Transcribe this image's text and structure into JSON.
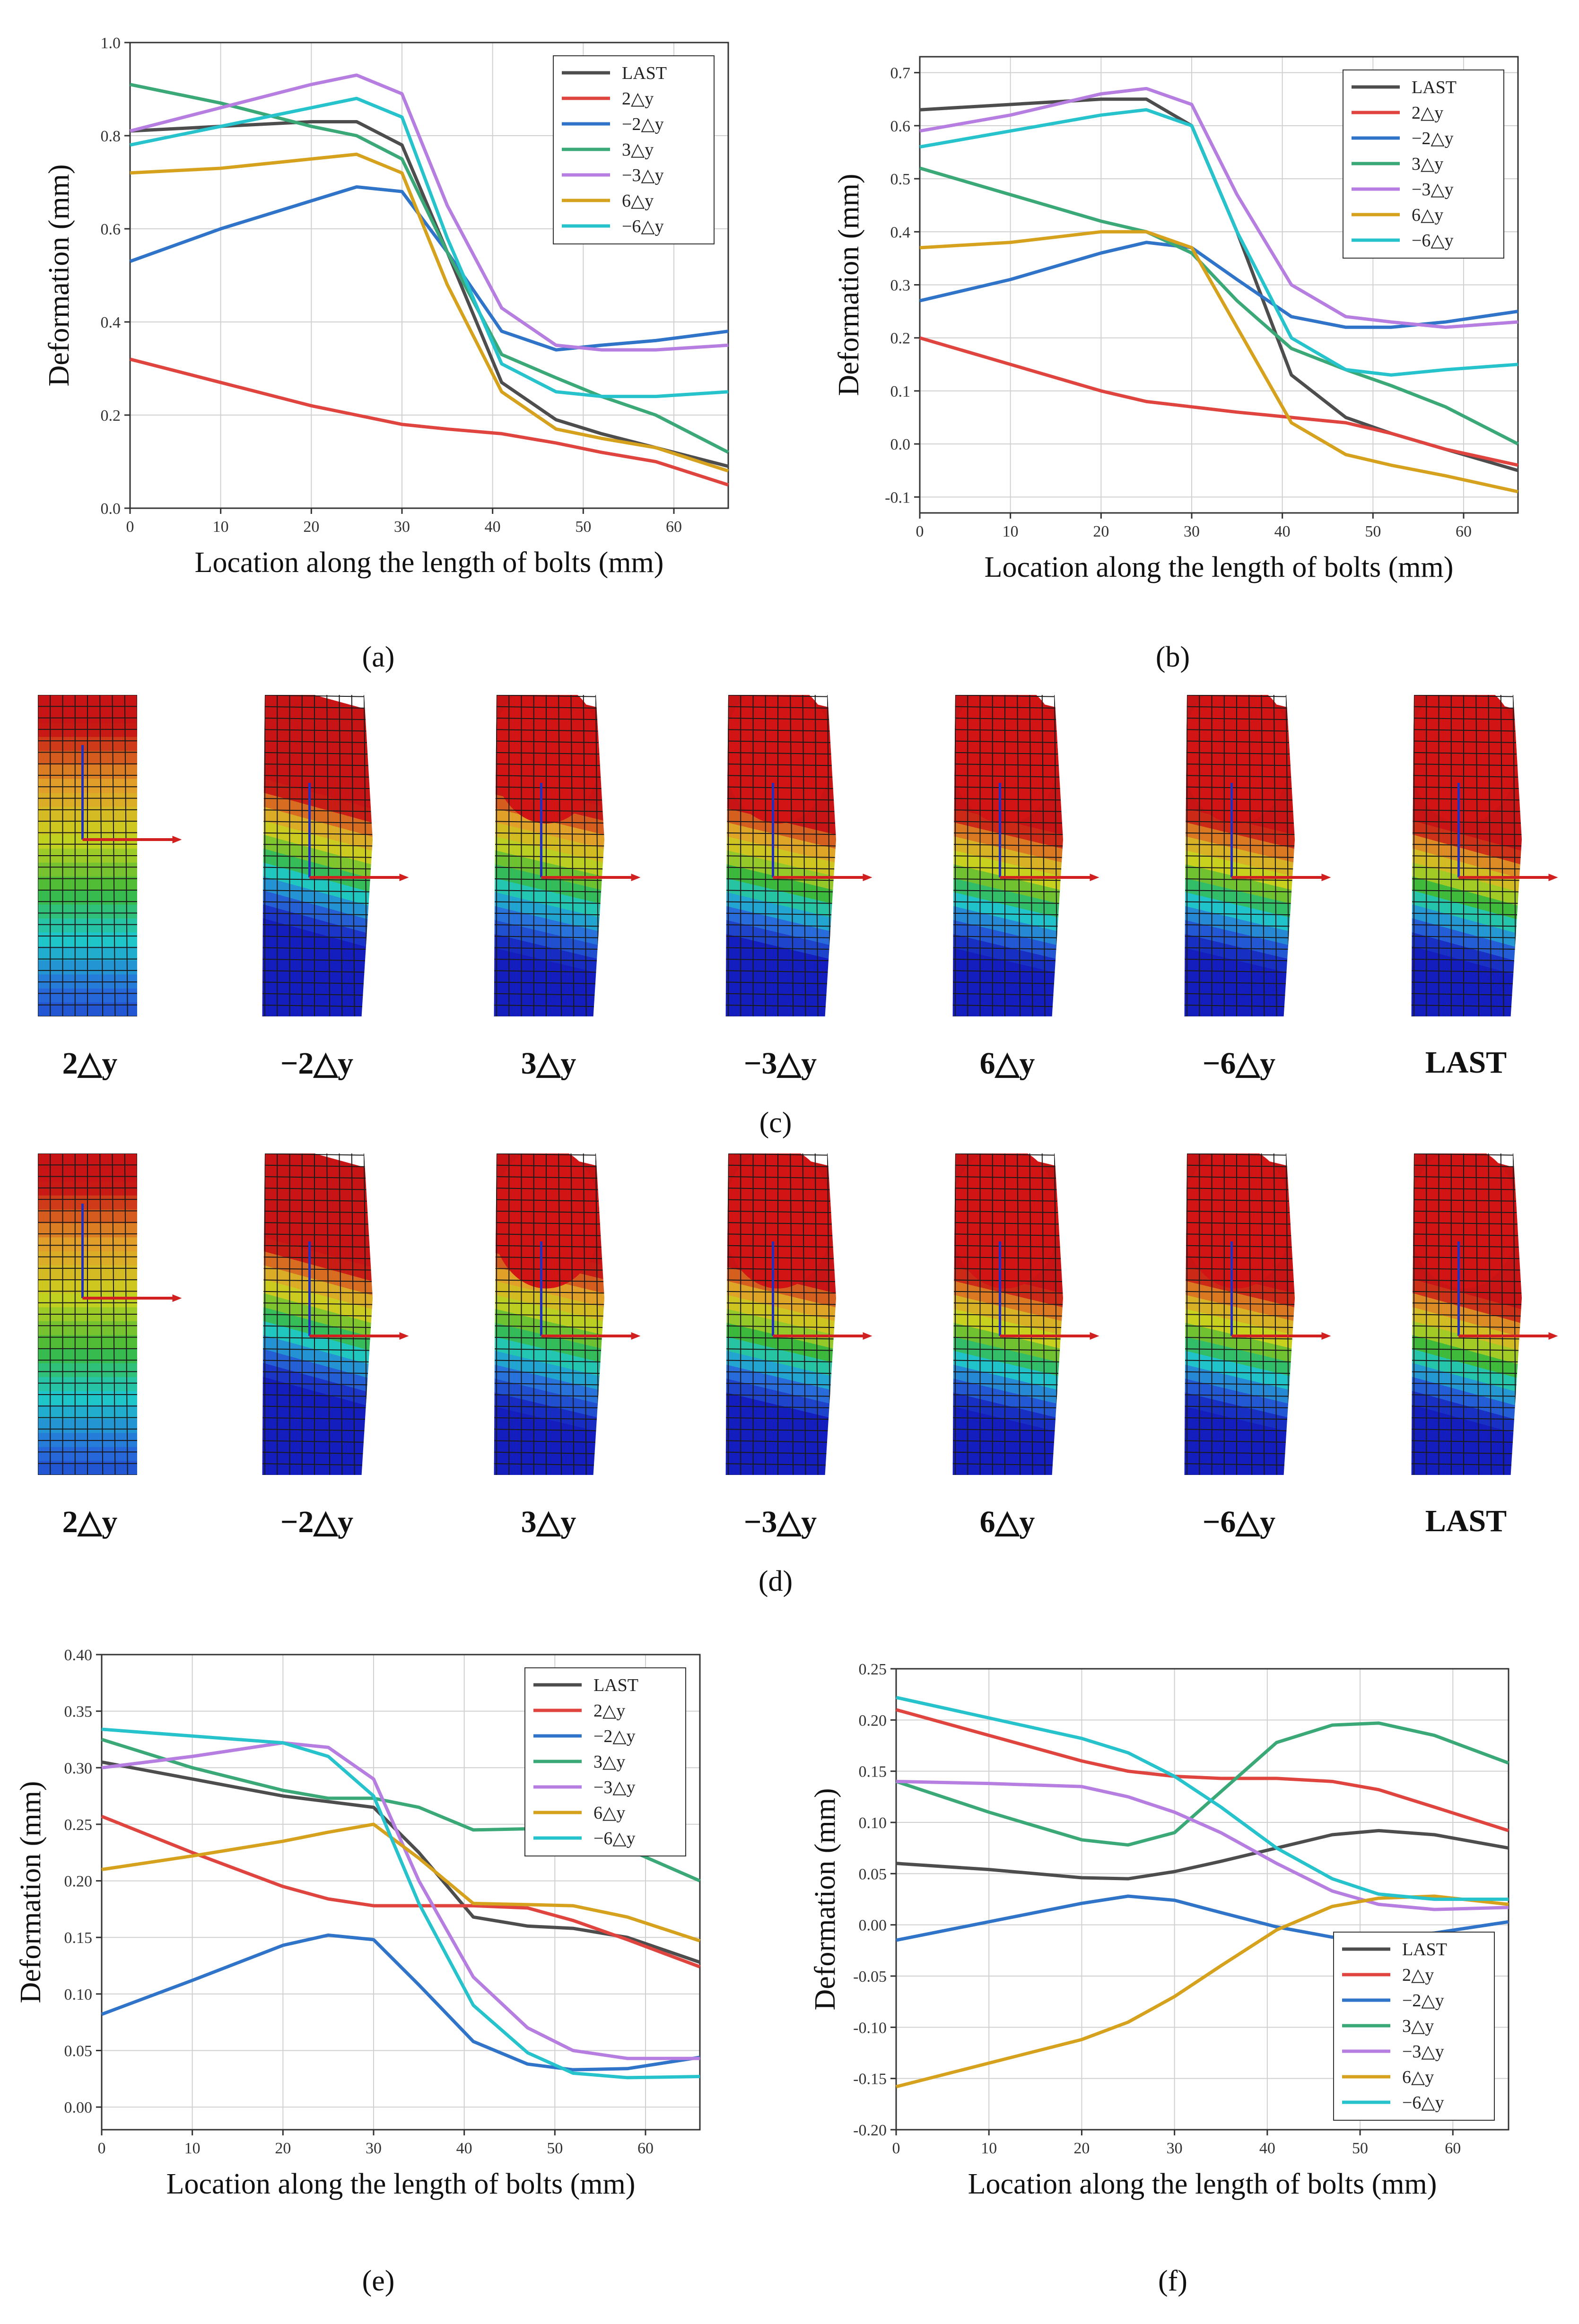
{
  "panels": {
    "a": "(a)",
    "b": "(b)",
    "c": "(c)",
    "d": "(d)",
    "e": "(e)",
    "f": "(f)"
  },
  "bolt_labels": [
    "2△y",
    "−2△y",
    "3△y",
    "−3△y",
    "6△y",
    "−6△y",
    "LAST"
  ],
  "colors": {
    "LAST": "#4d4d4d",
    "2△y": "#e0443e",
    "−2△y": "#2f74c8",
    "3△y": "#3aa877",
    "−3△y": "#b57ee0",
    "6△y": "#d6a21e",
    "−6△y": "#27c3cc"
  },
  "chart_data": [
    {
      "id": "a",
      "type": "line",
      "xlabel": "Location along the length of bolts (mm)",
      "ylabel": "Deformation (mm)",
      "xlim": [
        0,
        66
      ],
      "ylim": [
        0,
        1.0
      ],
      "xticks": [
        0,
        10,
        20,
        30,
        40,
        50,
        60
      ],
      "yticks": [
        0.0,
        0.2,
        0.4,
        0.6,
        0.8,
        1.0
      ],
      "ytick_labels": [
        "0.0",
        "0.2",
        "0.4",
        "0.6",
        "0.8",
        "1.0"
      ],
      "legend": "top-right",
      "x": [
        0,
        10,
        20,
        25,
        30,
        35,
        41,
        47,
        52,
        58,
        66
      ],
      "series": [
        {
          "name": "LAST",
          "values": [
            0.81,
            0.82,
            0.83,
            0.83,
            0.78,
            0.55,
            0.27,
            0.19,
            0.16,
            0.13,
            0.09
          ]
        },
        {
          "name": "2△y",
          "values": [
            0.32,
            0.27,
            0.22,
            0.2,
            0.18,
            0.17,
            0.16,
            0.14,
            0.12,
            0.1,
            0.05
          ]
        },
        {
          "name": "−2△y",
          "values": [
            0.53,
            0.6,
            0.66,
            0.69,
            0.68,
            0.55,
            0.38,
            0.34,
            0.35,
            0.36,
            0.38
          ]
        },
        {
          "name": "3△y",
          "values": [
            0.91,
            0.87,
            0.82,
            0.8,
            0.75,
            0.55,
            0.33,
            0.28,
            0.24,
            0.2,
            0.12
          ]
        },
        {
          "name": "−3△y",
          "values": [
            0.81,
            0.86,
            0.91,
            0.93,
            0.89,
            0.65,
            0.43,
            0.35,
            0.34,
            0.34,
            0.35
          ]
        },
        {
          "name": "6△y",
          "values": [
            0.72,
            0.73,
            0.75,
            0.76,
            0.72,
            0.48,
            0.25,
            0.17,
            0.15,
            0.13,
            0.08
          ]
        },
        {
          "name": "−6△y",
          "values": [
            0.78,
            0.82,
            0.86,
            0.88,
            0.84,
            0.58,
            0.31,
            0.25,
            0.24,
            0.24,
            0.25
          ]
        }
      ]
    },
    {
      "id": "b",
      "type": "line",
      "xlabel": "Location along the length of bolts (mm)",
      "ylabel": "Deformation (mm)",
      "xlim": [
        0,
        66
      ],
      "ylim": [
        -0.13,
        0.73
      ],
      "xticks": [
        0,
        10,
        20,
        30,
        40,
        50,
        60
      ],
      "yticks": [
        -0.1,
        0.0,
        0.1,
        0.2,
        0.3,
        0.4,
        0.5,
        0.6,
        0.7
      ],
      "ytick_labels": [
        "-0.1",
        "0.0",
        "0.1",
        "0.2",
        "0.3",
        "0.4",
        "0.5",
        "0.6",
        "0.7"
      ],
      "legend": "top-right",
      "x": [
        0,
        10,
        20,
        25,
        30,
        35,
        41,
        47,
        52,
        58,
        66
      ],
      "series": [
        {
          "name": "LAST",
          "values": [
            0.63,
            0.64,
            0.65,
            0.65,
            0.6,
            0.4,
            0.13,
            0.05,
            0.02,
            -0.01,
            -0.05
          ]
        },
        {
          "name": "2△y",
          "values": [
            0.2,
            0.15,
            0.1,
            0.08,
            0.07,
            0.06,
            0.05,
            0.04,
            0.02,
            -0.01,
            -0.04
          ]
        },
        {
          "name": "−2△y",
          "values": [
            0.27,
            0.31,
            0.36,
            0.38,
            0.37,
            0.31,
            0.24,
            0.22,
            0.22,
            0.23,
            0.25
          ]
        },
        {
          "name": "3△y",
          "values": [
            0.52,
            0.47,
            0.42,
            0.4,
            0.36,
            0.27,
            0.18,
            0.14,
            0.11,
            0.07,
            0.0
          ]
        },
        {
          "name": "−3△y",
          "values": [
            0.59,
            0.62,
            0.66,
            0.67,
            0.64,
            0.47,
            0.3,
            0.24,
            0.23,
            0.22,
            0.23
          ]
        },
        {
          "name": "6△y",
          "values": [
            0.37,
            0.38,
            0.4,
            0.4,
            0.37,
            0.22,
            0.04,
            -0.02,
            -0.04,
            -0.06,
            -0.09
          ]
        },
        {
          "name": "−6△y",
          "values": [
            0.56,
            0.59,
            0.62,
            0.63,
            0.6,
            0.4,
            0.2,
            0.14,
            0.13,
            0.14,
            0.15
          ]
        }
      ]
    },
    {
      "id": "e",
      "type": "line",
      "xlabel": "Location along the length of bolts (mm)",
      "ylabel": "Deformation (mm)",
      "xlim": [
        0,
        66
      ],
      "ylim": [
        -0.02,
        0.4
      ],
      "xticks": [
        0,
        10,
        20,
        30,
        40,
        50,
        60
      ],
      "yticks": [
        0.0,
        0.05,
        0.1,
        0.15,
        0.2,
        0.25,
        0.3,
        0.35,
        0.4
      ],
      "ytick_labels": [
        "0.00",
        "0.05",
        "0.10",
        "0.15",
        "0.20",
        "0.25",
        "0.30",
        "0.35",
        "0.40"
      ],
      "legend": "top-right",
      "x": [
        0,
        10,
        20,
        25,
        30,
        35,
        41,
        47,
        52,
        58,
        66
      ],
      "series": [
        {
          "name": "LAST",
          "values": [
            0.305,
            0.29,
            0.275,
            0.27,
            0.265,
            0.225,
            0.168,
            0.16,
            0.158,
            0.15,
            0.128
          ]
        },
        {
          "name": "2△y",
          "values": [
            0.257,
            0.225,
            0.195,
            0.184,
            0.178,
            0.178,
            0.178,
            0.176,
            0.165,
            0.148,
            0.124
          ]
        },
        {
          "name": "−2△y",
          "values": [
            0.082,
            0.112,
            0.143,
            0.152,
            0.148,
            0.108,
            0.058,
            0.038,
            0.033,
            0.034,
            0.044
          ]
        },
        {
          "name": "3△y",
          "values": [
            0.325,
            0.3,
            0.28,
            0.273,
            0.273,
            0.265,
            0.245,
            0.246,
            0.242,
            0.228,
            0.2
          ]
        },
        {
          "name": "−3△y",
          "values": [
            0.3,
            0.31,
            0.322,
            0.318,
            0.29,
            0.2,
            0.115,
            0.07,
            0.05,
            0.043,
            0.043
          ]
        },
        {
          "name": "6△y",
          "values": [
            0.21,
            0.222,
            0.235,
            0.243,
            0.25,
            0.22,
            0.18,
            0.179,
            0.178,
            0.168,
            0.147
          ]
        },
        {
          "name": "−6△y",
          "values": [
            0.334,
            0.328,
            0.322,
            0.31,
            0.275,
            0.18,
            0.09,
            0.048,
            0.03,
            0.026,
            0.027
          ]
        }
      ]
    },
    {
      "id": "f",
      "type": "line",
      "xlabel": "Location along the length of bolts (mm)",
      "ylabel": "Deformation (mm)",
      "xlim": [
        0,
        66
      ],
      "ylim": [
        -0.2,
        0.25
      ],
      "xticks": [
        0,
        10,
        20,
        30,
        40,
        50,
        60
      ],
      "yticks": [
        -0.2,
        -0.15,
        -0.1,
        -0.05,
        0.0,
        0.05,
        0.1,
        0.15,
        0.2,
        0.25
      ],
      "ytick_labels": [
        "-0.20",
        "-0.15",
        "-0.10",
        "-0.05",
        "0.00",
        "0.05",
        "0.10",
        "0.15",
        "0.20",
        "0.25"
      ],
      "legend": "bottom-right",
      "x": [
        0,
        10,
        20,
        25,
        30,
        35,
        41,
        47,
        52,
        58,
        66
      ],
      "series": [
        {
          "name": "LAST",
          "values": [
            0.06,
            0.054,
            0.046,
            0.045,
            0.052,
            0.062,
            0.075,
            0.088,
            0.092,
            0.088,
            0.075
          ]
        },
        {
          "name": "2△y",
          "values": [
            0.21,
            0.185,
            0.16,
            0.15,
            0.145,
            0.143,
            0.143,
            0.14,
            0.132,
            0.115,
            0.092
          ]
        },
        {
          "name": "−2△y",
          "values": [
            -0.015,
            0.003,
            0.021,
            0.028,
            0.024,
            0.012,
            -0.002,
            -0.012,
            -0.013,
            -0.008,
            0.003
          ]
        },
        {
          "name": "3△y",
          "values": [
            0.14,
            0.11,
            0.083,
            0.078,
            0.09,
            0.13,
            0.178,
            0.195,
            0.197,
            0.185,
            0.158
          ]
        },
        {
          "name": "−3△y",
          "values": [
            0.14,
            0.138,
            0.135,
            0.125,
            0.11,
            0.09,
            0.06,
            0.033,
            0.02,
            0.015,
            0.017
          ]
        },
        {
          "name": "6△y",
          "values": [
            -0.158,
            -0.135,
            -0.112,
            -0.095,
            -0.07,
            -0.04,
            -0.005,
            0.018,
            0.026,
            0.028,
            0.02
          ]
        },
        {
          "name": "−6△y",
          "values": [
            0.222,
            0.202,
            0.182,
            0.168,
            0.145,
            0.115,
            0.075,
            0.045,
            0.03,
            0.025,
            0.025
          ]
        }
      ]
    }
  ]
}
